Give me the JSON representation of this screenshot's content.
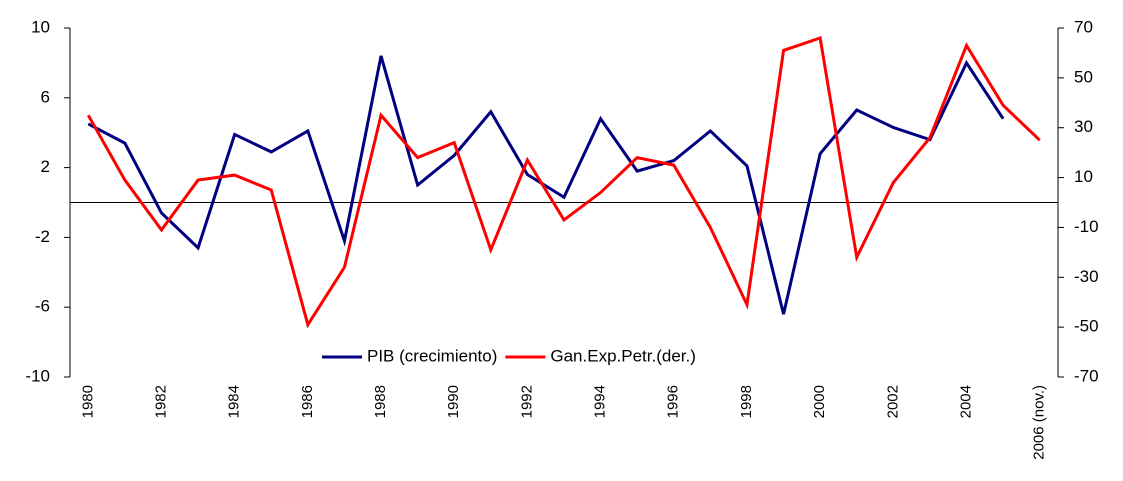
{
  "chart_data": {
    "type": "line",
    "categories": [
      "1980",
      null,
      "1982",
      null,
      "1984",
      null,
      "1986",
      null,
      "1988",
      null,
      "1990",
      null,
      "1992",
      null,
      "1994",
      null,
      "1996",
      null,
      "1998",
      null,
      "2000",
      null,
      "2002",
      null,
      "2004",
      null,
      "2006 (nov.)"
    ],
    "series": [
      {
        "name": "PIB (crecimiento)",
        "color": "#000080",
        "axis": "y",
        "values": [
          4.5,
          3.4,
          -0.6,
          -2.6,
          3.9,
          2.9,
          4.1,
          -2.2,
          8.4,
          1.0,
          2.7,
          5.2,
          1.6,
          0.3,
          4.8,
          1.8,
          2.4,
          4.1,
          2.1,
          -6.4,
          2.8,
          5.3,
          4.3,
          3.6,
          8.0,
          4.8,
          null
        ]
      },
      {
        "name": "Gan.Exp.Petr.(der.)",
        "color": "#ff0000",
        "axis": "y2",
        "values": [
          35,
          9,
          -11,
          9,
          11,
          5,
          -49,
          -26,
          35,
          18,
          24,
          -19,
          17,
          -7,
          4,
          18,
          15,
          -10,
          -41,
          61,
          66,
          -22,
          8,
          26,
          63,
          39,
          25
        ]
      }
    ],
    "ylim": [
      -10,
      10
    ],
    "yticks": [
      -10,
      -6,
      -2,
      2,
      6,
      10
    ],
    "y2lim": [
      -70,
      70
    ],
    "y2ticks": [
      -70,
      -50,
      -30,
      -10,
      10,
      30,
      50,
      70
    ],
    "legend": "bottom"
  }
}
